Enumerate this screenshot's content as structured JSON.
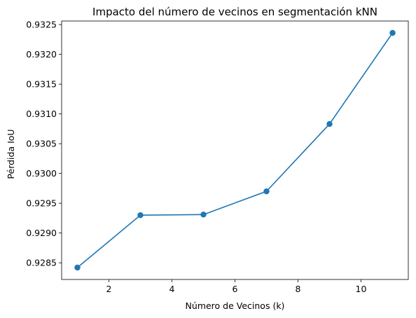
{
  "chart_data": {
    "type": "line",
    "title": "Impacto del número de vecinos en segmentación kNN",
    "xlabel": "Número de Vecinos (k)",
    "ylabel": "Pérdida IoU",
    "x": [
      1,
      3,
      5,
      7,
      9,
      11
    ],
    "series": [
      {
        "values": [
          0.92842,
          0.9293,
          0.92931,
          0.9297,
          0.93083,
          0.93236
        ],
        "color": "#1f77b4",
        "marker": "circle"
      }
    ],
    "xlim": [
      0.5,
      11.5
    ],
    "ylim": [
      0.92822,
      0.93256
    ],
    "xticks": [
      2,
      4,
      6,
      8,
      10
    ],
    "yticks": [
      0.9285,
      0.929,
      0.9295,
      0.93,
      0.9305,
      0.931,
      0.9315,
      0.932,
      0.9325
    ],
    "xtick_labels": [
      "2",
      "4",
      "6",
      "8",
      "10"
    ],
    "ytick_labels": [
      "0.9285",
      "0.9290",
      "0.9295",
      "0.9300",
      "0.9305",
      "0.9310",
      "0.9315",
      "0.9320",
      "0.9325"
    ],
    "grid": false,
    "legend": "none"
  }
}
